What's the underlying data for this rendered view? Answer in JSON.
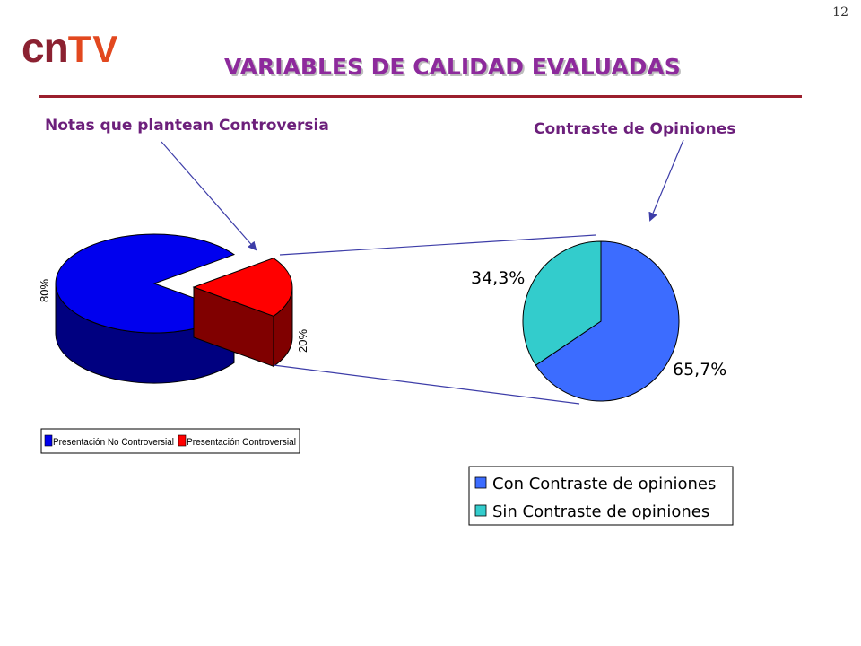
{
  "slide_number": "12",
  "logo": {
    "part1": "cn",
    "part2": "TV"
  },
  "title": "VARIABLES DE CALIDAD EVALUADAS",
  "subtitle_left": "Notas que plantean Controversia",
  "subtitle_right": "Contraste de Opiniones",
  "colors": {
    "blue_top": "#0000ee",
    "blue_side": "#000080",
    "red_top": "#ff0000",
    "red_side": "#800000",
    "pie2_blue": "#3c6cff",
    "pie2_teal": "#33cccc",
    "title": "#8d2a9c",
    "rule": "#9b1f2d"
  },
  "chart_data": [
    {
      "type": "pie",
      "style": "3d-exploded",
      "slices": [
        {
          "label": "Presentación No Controversial",
          "value": 80,
          "value_label": "80%"
        },
        {
          "label": "Presentación Controversial",
          "value": 20,
          "value_label": "20%"
        }
      ],
      "legend": [
        "Presentación No Controversial",
        "Presentación Controversial"
      ],
      "legend_position": "bottom"
    },
    {
      "type": "pie",
      "slices": [
        {
          "label": "Con Contraste de opiniones",
          "value": 65.7,
          "value_label": "65,7%"
        },
        {
          "label": "Sin Contraste de opiniones",
          "value": 34.3,
          "value_label": "34,3%"
        }
      ],
      "legend": [
        "Con Contraste de opiniones",
        "Sin Contraste de opiniones"
      ],
      "legend_position": "bottom"
    }
  ]
}
